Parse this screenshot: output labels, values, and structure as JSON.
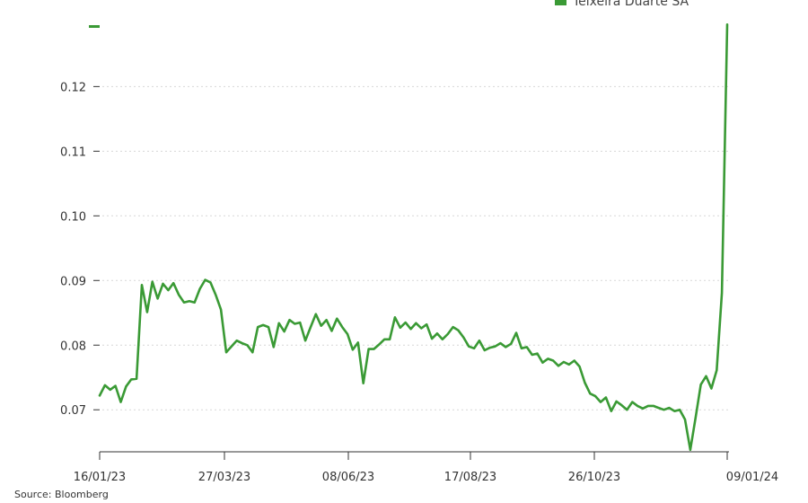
{
  "chart_data": {
    "type": "line",
    "title": "",
    "xlabel": "",
    "ylabel": "",
    "ylim": [
      0.0635,
      0.1295
    ],
    "y_ticks": [
      0.07,
      0.08,
      0.09,
      0.1,
      0.11,
      0.12
    ],
    "y_tick_labels": [
      "0.07",
      "0.08",
      "0.09",
      "0.10",
      "0.11",
      "0.12"
    ],
    "x_tick_labels": [
      "16/01/23",
      "27/03/23",
      "08/06/23",
      "17/08/23",
      "26/10/23",
      "09/01/24"
    ],
    "grid": true,
    "legend_position": "top-right",
    "colors": {
      "line": "#3a9a35",
      "grid": "#d7d7d7",
      "axis": "#333333"
    },
    "series": [
      {
        "name": "Teixeira Duarte SA",
        "x_start": "16/01/23",
        "x_end": "09/01/24",
        "values": [
          0.0722,
          0.0738,
          0.0731,
          0.0737,
          0.0712,
          0.0736,
          0.0747,
          0.0748,
          0.0893,
          0.0851,
          0.0898,
          0.0872,
          0.0895,
          0.0885,
          0.0896,
          0.0878,
          0.0866,
          0.0868,
          0.0866,
          0.0887,
          0.0901,
          0.0897,
          0.0878,
          0.0855,
          0.0789,
          0.0798,
          0.0807,
          0.0803,
          0.08,
          0.0789,
          0.0828,
          0.0831,
          0.0828,
          0.0797,
          0.0834,
          0.0821,
          0.0839,
          0.0833,
          0.0835,
          0.0807,
          0.0828,
          0.0848,
          0.083,
          0.0839,
          0.0822,
          0.0841,
          0.0828,
          0.0817,
          0.0793,
          0.0804,
          0.0741,
          0.0794,
          0.0794,
          0.0801,
          0.0809,
          0.0809,
          0.0843,
          0.0827,
          0.0835,
          0.0825,
          0.0834,
          0.0826,
          0.0832,
          0.081,
          0.0818,
          0.0809,
          0.0817,
          0.0828,
          0.0823,
          0.0812,
          0.0798,
          0.0795,
          0.0807,
          0.0792,
          0.0796,
          0.0798,
          0.0803,
          0.0797,
          0.0802,
          0.0819,
          0.0795,
          0.0797,
          0.0785,
          0.0787,
          0.0773,
          0.0779,
          0.0776,
          0.0768,
          0.0774,
          0.077,
          0.0776,
          0.0767,
          0.0742,
          0.0725,
          0.0721,
          0.0712,
          0.0719,
          0.0698,
          0.0713,
          0.0707,
          0.07,
          0.0712,
          0.0706,
          0.0702,
          0.0706,
          0.0706,
          0.0703,
          0.07,
          0.0703,
          0.0698,
          0.07,
          0.0685,
          0.0638,
          0.0688,
          0.0739,
          0.0752,
          0.0733,
          0.0761,
          0.0881,
          0.1296
        ]
      }
    ]
  },
  "source_text": "Source: Bloomberg"
}
